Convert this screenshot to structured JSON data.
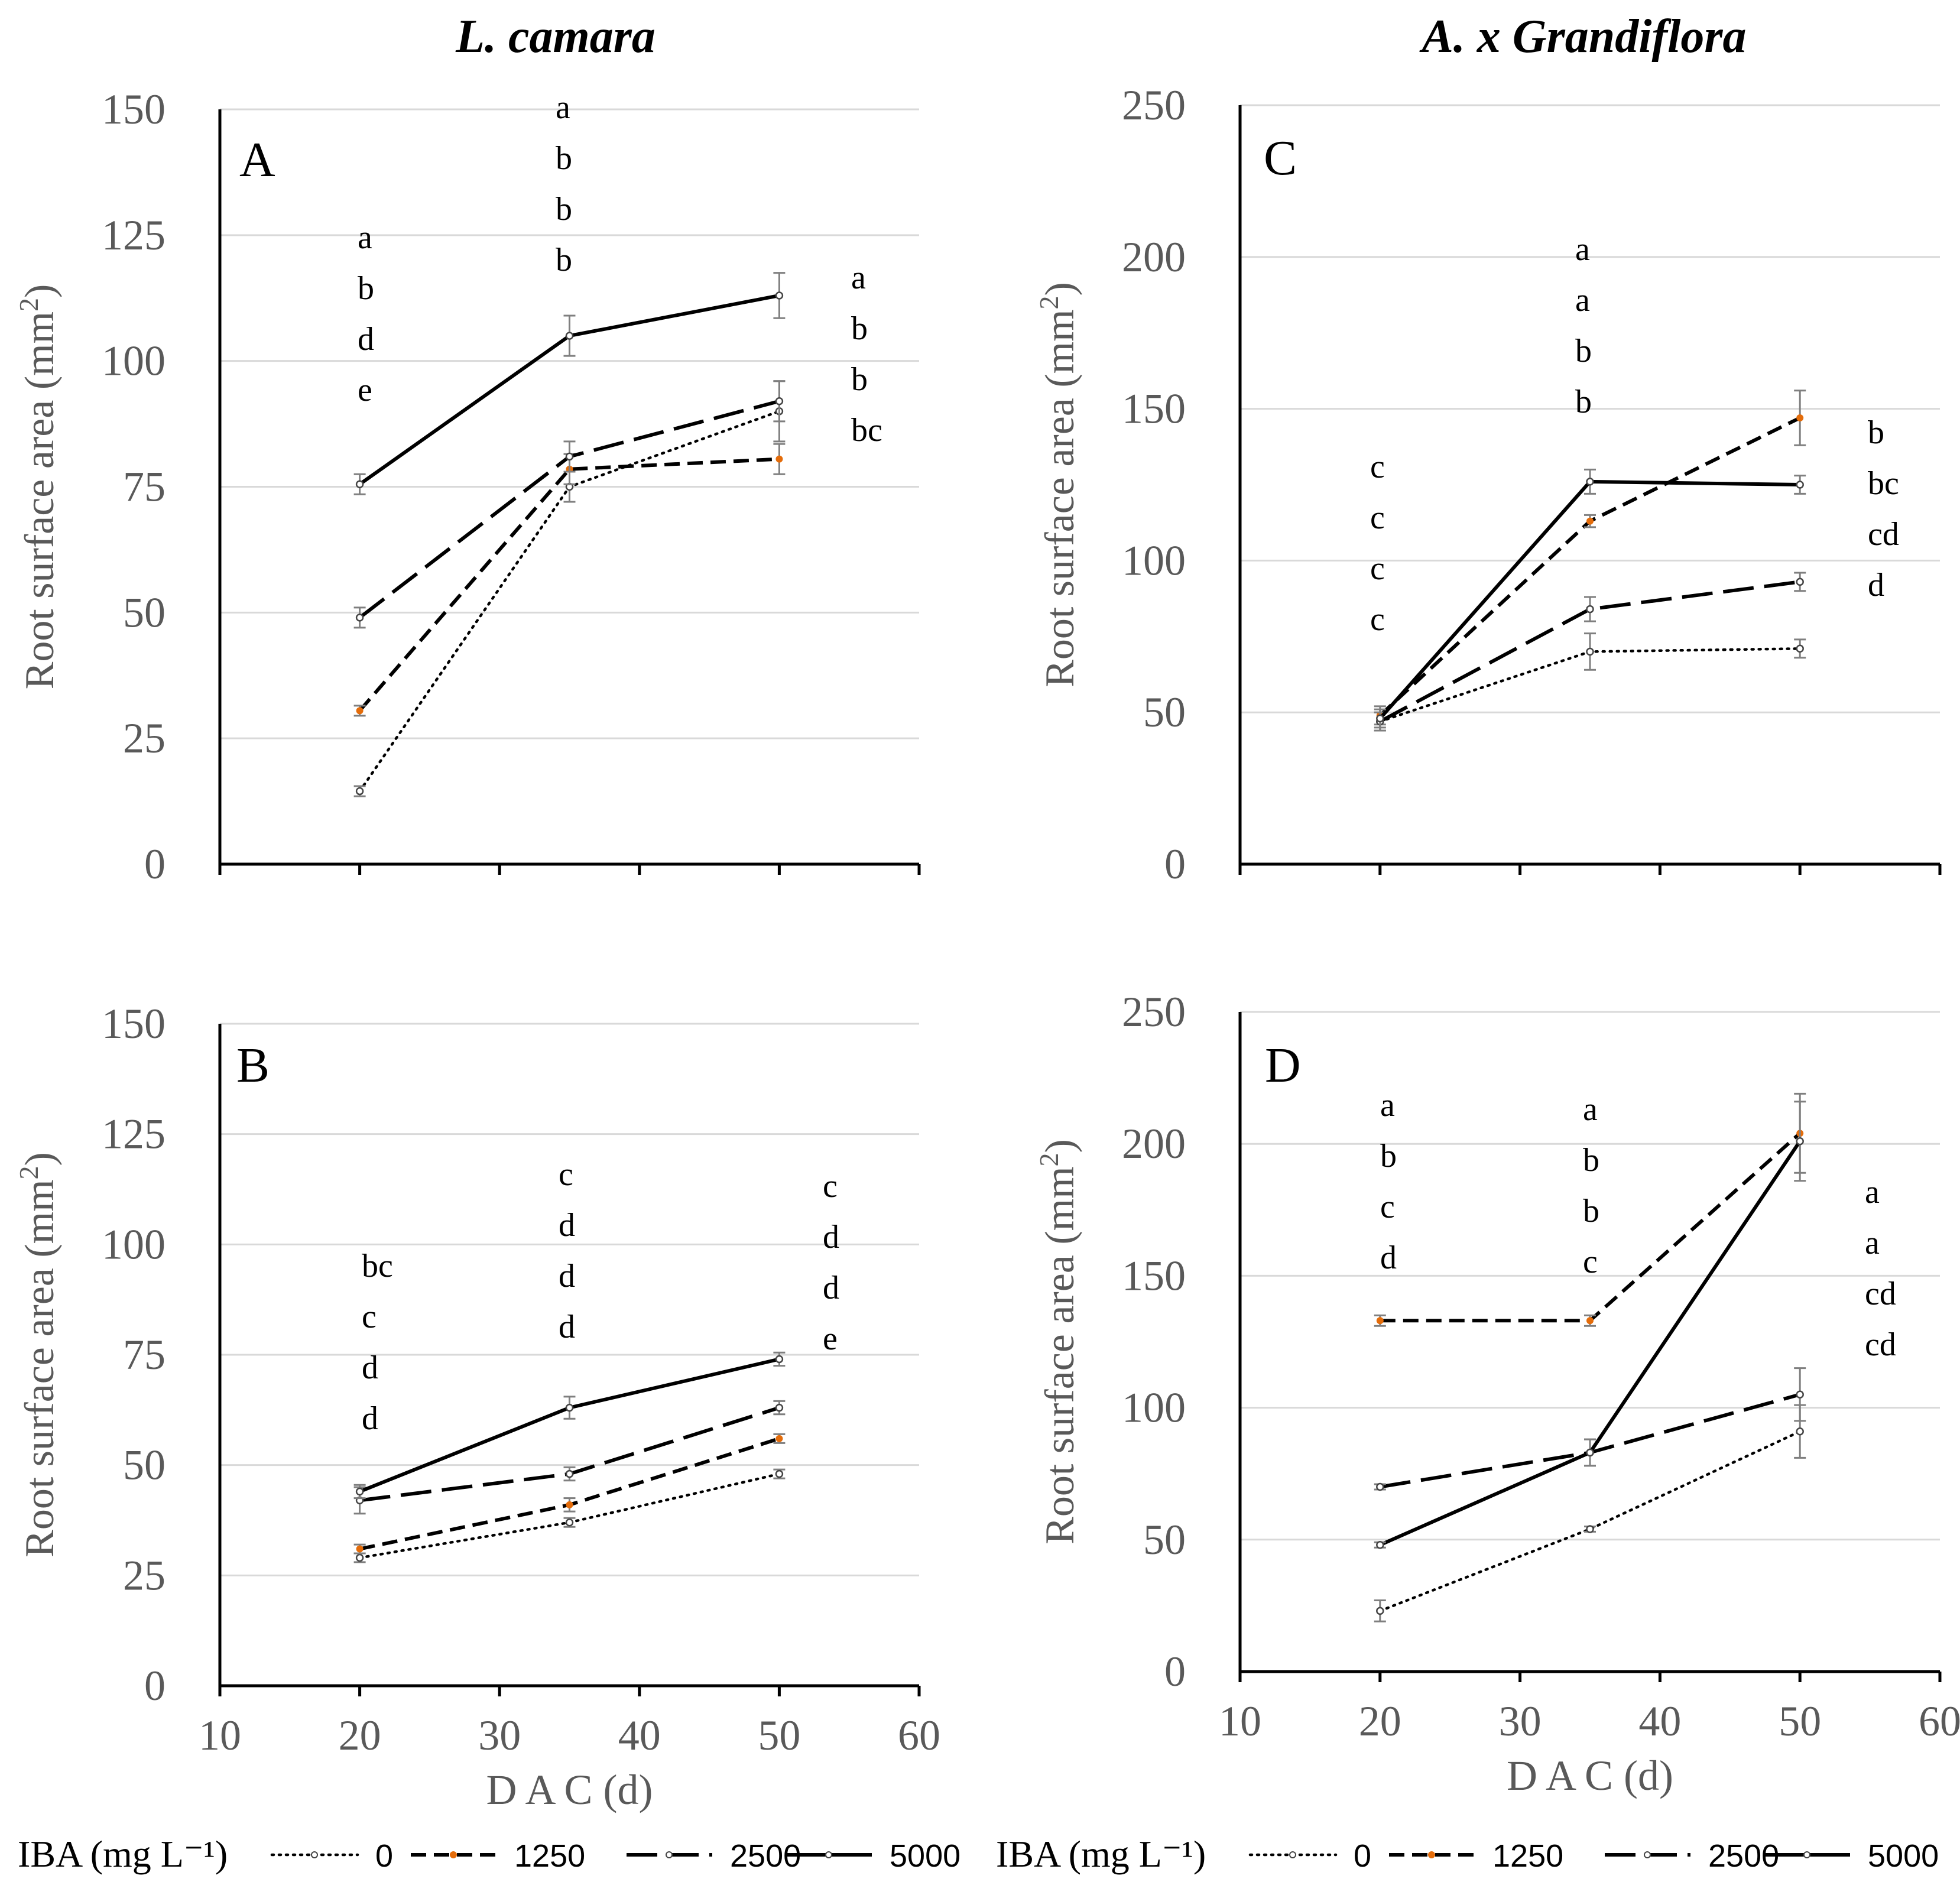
{
  "column_titles": [
    "L. camara",
    "A. x Grandiflora"
  ],
  "legend": {
    "label": "IBA (mg L⁻¹)",
    "entries": [
      "0",
      "1250",
      "2500",
      "5000"
    ]
  },
  "chart_data": [
    {
      "type": "line",
      "panel": "A",
      "title": "L. camara",
      "xlabel": "",
      "ylabel": "Root surface area (mm2)",
      "xlim": [
        10,
        60
      ],
      "ylim": [
        0,
        150
      ],
      "yticks": [
        0,
        25,
        50,
        75,
        100,
        125,
        150
      ],
      "xticks": [],
      "x": [
        20,
        35,
        50
      ],
      "series": [
        {
          "name": "0",
          "values": [
            14.5,
            75,
            90
          ],
          "errors": [
            1,
            3,
            6
          ]
        },
        {
          "name": "1250",
          "values": [
            30.5,
            78.5,
            80.5
          ],
          "errors": [
            1,
            3,
            3
          ]
        },
        {
          "name": "2500",
          "values": [
            49,
            81,
            92
          ],
          "errors": [
            2,
            3,
            4
          ]
        },
        {
          "name": "5000",
          "values": [
            75.5,
            105,
            113
          ],
          "errors": [
            2,
            4,
            4.5
          ]
        }
      ],
      "sig_labels": [
        [
          "a",
          "b",
          "d",
          "e"
        ],
        [
          "a",
          "b",
          "b",
          "b"
        ],
        [
          "a",
          "b",
          "b",
          "bc"
        ]
      ]
    },
    {
      "type": "line",
      "panel": "B",
      "title": "",
      "xlabel": "D A C (d)",
      "ylabel": "Root surface area (mm2)",
      "xlim": [
        10,
        60
      ],
      "ylim": [
        0,
        150
      ],
      "yticks": [
        0,
        25,
        50,
        75,
        100,
        125,
        150
      ],
      "xticks": [
        10,
        20,
        30,
        40,
        50,
        60
      ],
      "x": [
        20,
        35,
        50
      ],
      "series": [
        {
          "name": "0",
          "values": [
            29,
            37,
            48
          ],
          "errors": [
            1,
            1,
            1
          ]
        },
        {
          "name": "1250",
          "values": [
            31,
            41,
            56
          ],
          "errors": [
            1,
            1.5,
            1
          ]
        },
        {
          "name": "2500",
          "values": [
            42,
            48,
            63
          ],
          "errors": [
            3,
            1.5,
            1.5
          ]
        },
        {
          "name": "5000",
          "values": [
            44,
            63,
            74
          ],
          "errors": [
            1.5,
            2.5,
            1.5
          ]
        }
      ],
      "sig_labels": [
        [
          "bc",
          "c",
          "d",
          "d"
        ],
        [
          "c",
          "d",
          "d",
          "d"
        ],
        [
          "c",
          "d",
          "d",
          "e"
        ]
      ]
    },
    {
      "type": "line",
      "panel": "C",
      "title": "A. x Grandiflora",
      "xlabel": "",
      "ylabel": "Root surface area (mm2)",
      "xlim": [
        10,
        60
      ],
      "ylim": [
        0,
        250
      ],
      "yticks": [
        0,
        50,
        100,
        150,
        200,
        250
      ],
      "xticks": [],
      "x": [
        20,
        35,
        50
      ],
      "series": [
        {
          "name": "0",
          "values": [
            47,
            70,
            71
          ],
          "errors": [
            3,
            6,
            3
          ]
        },
        {
          "name": "1250",
          "values": [
            49,
            113,
            147
          ],
          "errors": [
            3,
            2,
            9
          ]
        },
        {
          "name": "2500",
          "values": [
            47,
            84,
            93
          ],
          "errors": [
            3,
            4,
            3
          ]
        },
        {
          "name": "5000",
          "values": [
            48,
            126,
            125
          ],
          "errors": [
            3,
            4,
            3
          ]
        }
      ],
      "sig_labels": [
        [
          "c",
          "c",
          "c",
          "c"
        ],
        [
          "a",
          "a",
          "b",
          "b"
        ],
        [
          "b",
          "bc",
          "cd",
          "d"
        ]
      ]
    },
    {
      "type": "line",
      "panel": "D",
      "title": "",
      "xlabel": "D A C (d)",
      "ylabel": "Root surface area (mm2)",
      "xlim": [
        10,
        60
      ],
      "ylim": [
        0,
        250
      ],
      "yticks": [
        0,
        50,
        100,
        150,
        200,
        250
      ],
      "xticks": [
        10,
        20,
        30,
        40,
        50,
        60
      ],
      "x": [
        20,
        35,
        50
      ],
      "series": [
        {
          "name": "0",
          "values": [
            23,
            54,
            91
          ],
          "errors": [
            4,
            1,
            10
          ]
        },
        {
          "name": "1250",
          "values": [
            133,
            133,
            204
          ],
          "errors": [
            2,
            2,
            15
          ]
        },
        {
          "name": "2500",
          "values": [
            70,
            83,
            105
          ],
          "errors": [
            1,
            5,
            10
          ]
        },
        {
          "name": "5000",
          "values": [
            48,
            83,
            201
          ],
          "errors": [
            1,
            5,
            15
          ]
        }
      ],
      "sig_labels": [
        [
          "a",
          "b",
          "c",
          "d"
        ],
        [
          "a",
          "b",
          "b",
          "c"
        ],
        [
          "a",
          "a",
          "cd",
          "cd"
        ]
      ]
    }
  ]
}
